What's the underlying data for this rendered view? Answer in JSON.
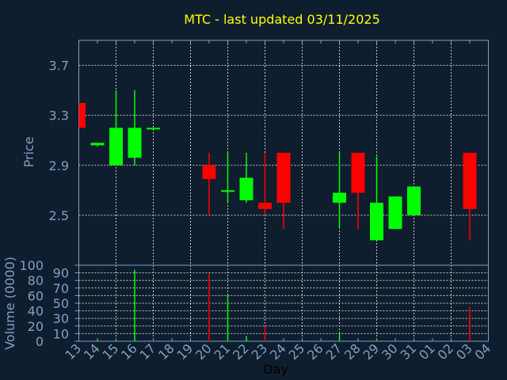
{
  "chart_data": [
    {
      "type": "candlestick",
      "title": "MTC - last updated 03/11/2025",
      "ylabel": "Price",
      "ylim": [
        2.1,
        3.9
      ],
      "yticks": [
        "2.5",
        "2.9",
        "3.3",
        "3.7"
      ],
      "ytick_values": [
        2.5,
        2.9,
        3.3,
        3.7
      ],
      "grid": true,
      "up_color": "#00ff00",
      "down_color": "#ff0000",
      "candles": [
        {
          "day": "13",
          "open": 3.4,
          "high": 3.4,
          "low": 3.2,
          "close": 3.2
        },
        {
          "day": "14",
          "open": 3.06,
          "high": 3.08,
          "low": 3.05,
          "close": 3.08
        },
        {
          "day": "15",
          "open": 2.9,
          "high": 3.5,
          "low": 2.9,
          "close": 3.2
        },
        {
          "day": "16",
          "open": 2.96,
          "high": 3.5,
          "low": 2.9,
          "close": 3.2
        },
        {
          "day": "17",
          "open": 3.19,
          "high": 3.2,
          "low": 3.19,
          "close": 3.2
        },
        {
          "day": "20",
          "open": 2.9,
          "high": 3.0,
          "low": 2.5,
          "close": 2.79
        },
        {
          "day": "21",
          "open": 2.69,
          "high": 3.0,
          "low": 2.6,
          "close": 2.7
        },
        {
          "day": "22",
          "open": 2.62,
          "high": 3.0,
          "low": 2.6,
          "close": 2.8
        },
        {
          "day": "23",
          "open": 2.6,
          "high": 3.0,
          "low": 2.5,
          "close": 2.55
        },
        {
          "day": "24",
          "open": 3.0,
          "high": 3.0,
          "low": 2.39,
          "close": 2.6
        },
        {
          "day": "27",
          "open": 2.6,
          "high": 3.0,
          "low": 2.4,
          "close": 2.68
        },
        {
          "day": "28",
          "open": 3.0,
          "high": 3.0,
          "low": 2.39,
          "close": 2.68
        },
        {
          "day": "29",
          "open": 2.3,
          "high": 2.97,
          "low": 2.3,
          "close": 2.6
        },
        {
          "day": "30",
          "open": 2.39,
          "high": 2.65,
          "low": 2.39,
          "close": 2.65
        },
        {
          "day": "31",
          "open": 2.5,
          "high": 2.73,
          "low": 2.5,
          "close": 2.73
        },
        {
          "day": "03",
          "open": 3.0,
          "high": 3.0,
          "low": 2.3,
          "close": 2.55
        }
      ]
    },
    {
      "type": "bar",
      "ylabel": "Volume (0000)",
      "xlabel": "Day",
      "ylim": [
        0,
        100
      ],
      "yticks": [
        "0",
        "10",
        "20",
        "30",
        "40",
        "50",
        "60",
        "70",
        "80",
        "90",
        "100"
      ],
      "grid": true,
      "categories": [
        "13",
        "14",
        "15",
        "16",
        "17",
        "18",
        "19",
        "20",
        "21",
        "22",
        "23",
        "24",
        "25",
        "26",
        "27",
        "28",
        "29",
        "30",
        "31",
        "01",
        "02",
        "03",
        "04"
      ],
      "volumes": [
        {
          "day": "14",
          "value": 2,
          "color": "#00ff00"
        },
        {
          "day": "15",
          "value": 1,
          "color": "#00ff00"
        },
        {
          "day": "16",
          "value": 94,
          "color": "#00ff00"
        },
        {
          "day": "20",
          "value": 89,
          "color": "#ff0000"
        },
        {
          "day": "21",
          "value": 60,
          "color": "#00ff00"
        },
        {
          "day": "22",
          "value": 7,
          "color": "#00ff00"
        },
        {
          "day": "23",
          "value": 20,
          "color": "#ff0000"
        },
        {
          "day": "27",
          "value": 10,
          "color": "#00ff00"
        },
        {
          "day": "29",
          "value": 2,
          "color": "#00ff00"
        },
        {
          "day": "03",
          "value": 45,
          "color": "#ff0000"
        }
      ]
    }
  ]
}
